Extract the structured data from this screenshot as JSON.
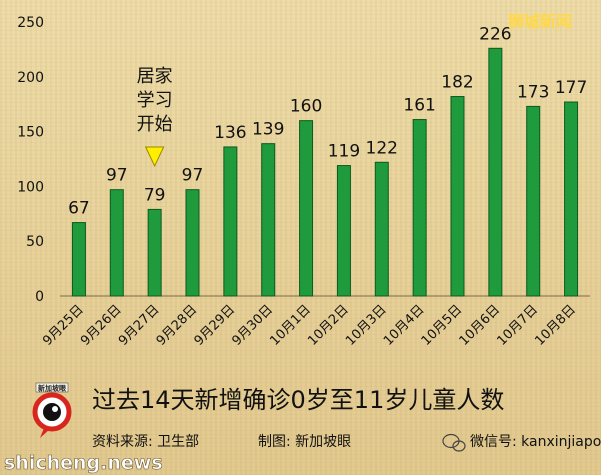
{
  "chart_data": {
    "type": "bar",
    "categories": [
      "9月25日",
      "9月26日",
      "9月27日",
      "9月28日",
      "9月29日",
      "9月30日",
      "10月1日",
      "10月2日",
      "10月3日",
      "10月4日",
      "10月5日",
      "10月6日",
      "10月7日",
      "10月8日"
    ],
    "values": [
      67,
      97,
      79,
      97,
      136,
      139,
      160,
      119,
      122,
      161,
      182,
      226,
      173,
      177
    ],
    "ylim": [
      0,
      250
    ],
    "yticks": [
      0,
      50,
      100,
      150,
      200,
      250
    ],
    "bar_color": "#1f9a3c",
    "bar_edge_color": "#0c5a1e",
    "title": "过去14天新增确诊0岁至11岁儿童人数",
    "annotation": {
      "lines": [
        "居家",
        "学习",
        "开始"
      ],
      "category_index": 2,
      "marker_color": "#ffee00"
    },
    "grid": false,
    "legend": "none"
  },
  "footer": {
    "source": "资料来源:  卫生部",
    "credit": "制图:  新加坡眼",
    "wechat": "微信号: kanxinjiapo",
    "watermark": "shicheng.news",
    "brand": "狮城新闻",
    "logo_text": "新加坡眼"
  }
}
